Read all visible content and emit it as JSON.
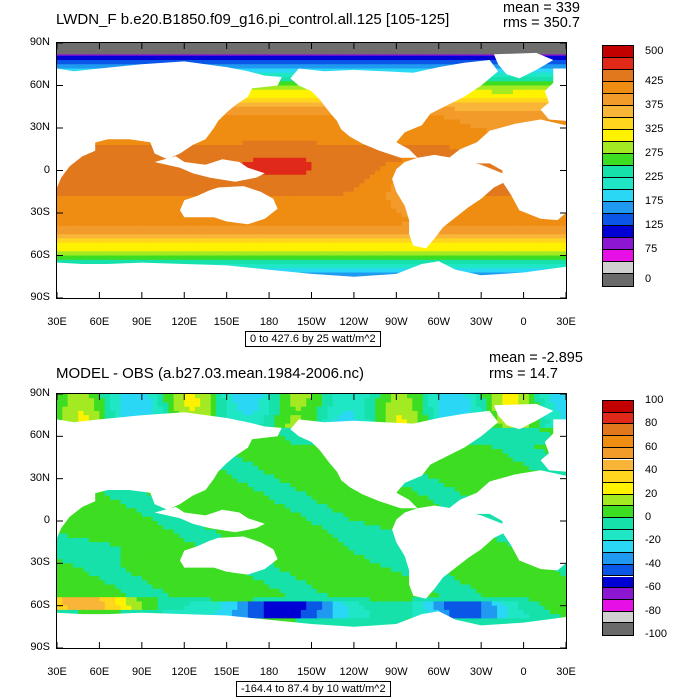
{
  "colors": {
    "top": [
      "#6a6a6a",
      "#cfcfcf",
      "#e60fe6",
      "#8d16d3",
      "#0000d4",
      "#0a56e7",
      "#1f9af0",
      "#2ad8f5",
      "#1fe7c5",
      "#16e1ab",
      "#3ddd22",
      "#a4ea23",
      "#fff200",
      "#ffd51e",
      "#f8b538",
      "#f39b2a",
      "#ef8c12",
      "#e2781d",
      "#e1291a",
      "#c20000"
    ],
    "bottom": [
      "#6a6a6a",
      "#cfcfcf",
      "#e60fe6",
      "#8d16d3",
      "#0000d4",
      "#0a56e7",
      "#1f9af0",
      "#2ad8f5",
      "#1fe7c5",
      "#16e1ab",
      "#3ddd22",
      "#a4ea23",
      "#fff200",
      "#ffd51e",
      "#f8b538",
      "#f39b2a",
      "#ef8c12",
      "#e2781d",
      "#e1291a",
      "#c20000"
    ],
    "land": "#ffffff",
    "missing": "#6e6e6e"
  },
  "chart_data": [
    {
      "type": "heatmap",
      "title": "LWDN_F b.e20.B1850.f09_g16.pi_control.all.125 [105-125]",
      "stats": {
        "mean": "mean = 339",
        "rms": "rms = 350.7"
      },
      "contour_info": "0 to 427.6 by 25 watt/m^2",
      "lat_ticks": [
        "90N",
        "60N",
        "30N",
        "0",
        "30S",
        "60S",
        "90S"
      ],
      "lon_ticks": [
        "30E",
        "60E",
        "90E",
        "120E",
        "150E",
        "180",
        "150W",
        "120W",
        "90W",
        "60W",
        "30W",
        "0",
        "30E"
      ],
      "colorbar_labels": [
        "500",
        "425",
        "375",
        "325",
        "275",
        "225",
        "175",
        "125",
        "75",
        "0"
      ],
      "levels": [
        0,
        25,
        50,
        75,
        100,
        125,
        150,
        175,
        200,
        225,
        250,
        275,
        300,
        325,
        350,
        375,
        400,
        425,
        450,
        475,
        500
      ],
      "mean": 339,
      "rms": 350.7
    },
    {
      "type": "heatmap",
      "title": "MODEL - OBS (a.b27.03.mean.1984-2006.nc)",
      "stats": {
        "mean": "mean = -2.895",
        "rms": "rms = 14.7"
      },
      "contour_info": "-164.4 to 87.4 by 10 watt/m^2",
      "lat_ticks": [
        "90N",
        "60N",
        "30N",
        "0",
        "30S",
        "60S",
        "90S"
      ],
      "lon_ticks": [
        "30E",
        "60E",
        "90E",
        "120E",
        "150E",
        "180",
        "150W",
        "120W",
        "90W",
        "60W",
        "30W",
        "0",
        "30E"
      ],
      "colorbar_labels": [
        "100",
        "80",
        "60",
        "40",
        "20",
        "0",
        "-20",
        "-40",
        "-60",
        "-80",
        "-100"
      ],
      "levels": [
        -100,
        -90,
        -80,
        -70,
        -60,
        -50,
        -40,
        -30,
        -20,
        -10,
        0,
        10,
        20,
        30,
        40,
        50,
        60,
        70,
        80,
        90,
        100
      ],
      "mean": -2.895,
      "rms": 14.7
    }
  ]
}
